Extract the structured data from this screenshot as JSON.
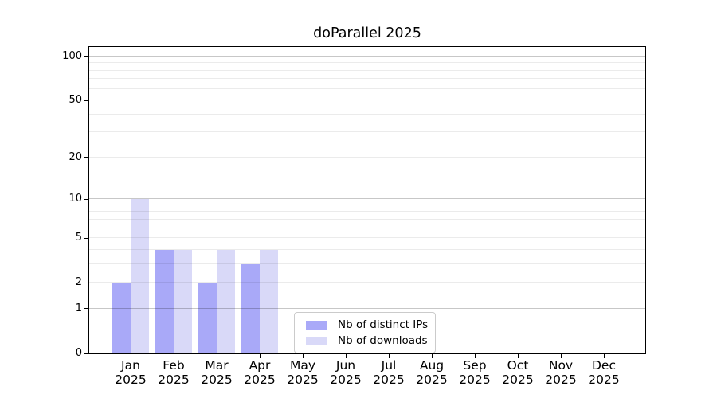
{
  "title": "doParallel 2025",
  "chart_data": {
    "type": "bar",
    "title": "doParallel 2025",
    "categories": [
      "Jan",
      "Feb",
      "Mar",
      "Apr",
      "May",
      "Jun",
      "Jul",
      "Aug",
      "Sep",
      "Oct",
      "Nov",
      "Dec"
    ],
    "year": "2025",
    "series": [
      {
        "name": "Nb of distinct IPs",
        "color": "#a9a9f8",
        "values": [
          2,
          4,
          2,
          3,
          0,
          0,
          0,
          0,
          0,
          0,
          0,
          0
        ]
      },
      {
        "name": "Nb of downloads",
        "color": "#d9d9f8",
        "values": [
          10,
          4,
          4,
          4,
          0,
          0,
          0,
          0,
          0,
          0,
          0,
          0
        ]
      }
    ],
    "yscale": "log1p",
    "ylim": [
      0,
      100
    ],
    "yticks": [
      0,
      1,
      2,
      5,
      10,
      20,
      50,
      100
    ],
    "grid": "horizontal",
    "grid_major": [
      1,
      10,
      100
    ],
    "grid_minor": [
      2,
      3,
      4,
      5,
      6,
      7,
      8,
      9,
      20,
      30,
      40,
      50,
      60,
      70,
      80,
      90
    ],
    "legend_position": "lower-center"
  },
  "style": {
    "bar_color_ips": "#a9a9f8",
    "bar_color_downloads": "#d9d9f8",
    "grid_major_color": "#c7c7c7",
    "grid_minor_color": "#ebebeb",
    "spine_color": "#000000",
    "background": "#ffffff"
  }
}
